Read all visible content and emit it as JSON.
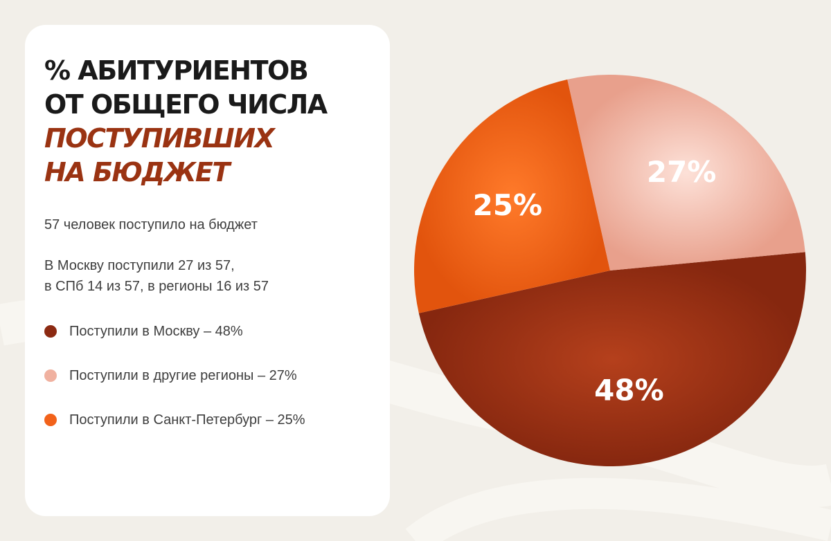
{
  "title": {
    "line1": "% абитуриентов",
    "line2": "от общего числа",
    "line3": "поступивших",
    "line4": "на бюджет"
  },
  "summary": "57 человек поступило на бюджет",
  "details_line1": "В Москву поступили 27 из 57,",
  "details_line2": "в СПб 14 из 57, в регионы 16 из 57",
  "legend": [
    {
      "label": "Поступили в Москву – 48%",
      "color": "#8c2a12"
    },
    {
      "label": "Поступили в другие регионы – 27%",
      "color": "#f0b1a0"
    },
    {
      "label": "Поступили в Санкт-Петербург – 25%",
      "color": "#f2621a"
    }
  ],
  "chart_data": {
    "type": "pie",
    "title": "% абитуриентов от общего числа поступивших на бюджет",
    "slices": [
      {
        "name": "Поступили в Москву",
        "value": 48,
        "label": "48%",
        "color": "#8c2a12"
      },
      {
        "name": "Поступили в другие регионы",
        "value": 27,
        "label": "27%",
        "color": "#f0b1a0"
      },
      {
        "name": "Поступили в Санкт-Петербург",
        "value": 25,
        "label": "25%",
        "color": "#f2621a"
      }
    ]
  }
}
